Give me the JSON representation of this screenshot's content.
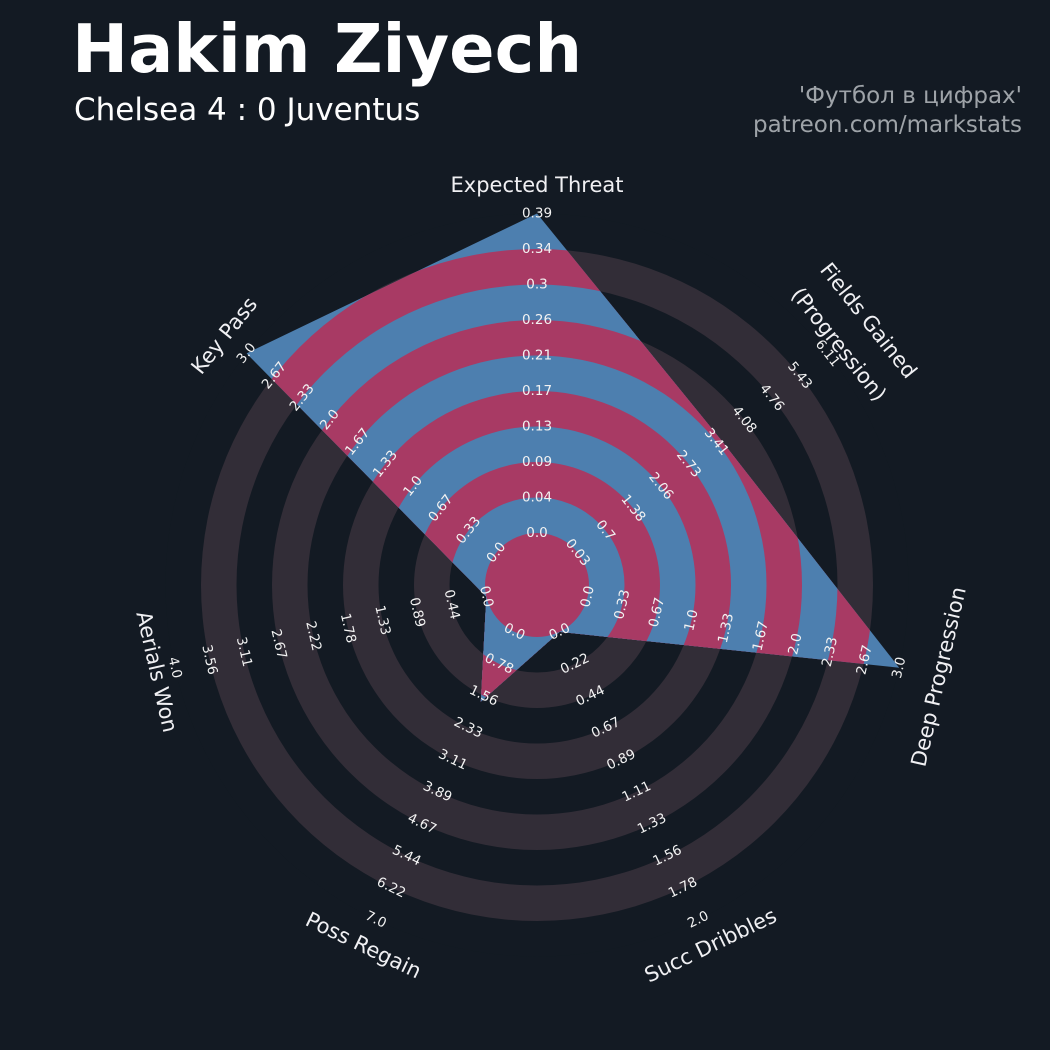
{
  "header": {
    "title": "Hakim Ziyech",
    "subtitle": "Chelsea 4 : 0 Juventus",
    "credit_line1": "'Футбол в цифрах'",
    "credit_line2": "patreon.com/markstats"
  },
  "chart_data": {
    "type": "radar",
    "player": "Hakim Ziyech",
    "match": "Chelsea 4 : 0 Juventus",
    "ring_count": 9,
    "legend_position": "none",
    "grid": "concentric-rings",
    "axes": [
      {
        "label": "Expected Threat",
        "min": 0,
        "max": 0.39,
        "value": 0.39,
        "ticks": [
          "0.0",
          "0.04",
          "0.09",
          "0.13",
          "0.17",
          "0.21",
          "0.26",
          "0.3",
          "0.34",
          "0.39"
        ]
      },
      {
        "label": "Fields Gained (Progression)",
        "label_lines": [
          "Fields Gained",
          "(Progression)"
        ],
        "min": 0.03,
        "max": 6.11,
        "value": 3.5,
        "ticks": [
          "0.03",
          "0.7",
          "1.38",
          "2.06",
          "2.73",
          "3.41",
          "4.08",
          "4.76",
          "5.43",
          "6.11"
        ]
      },
      {
        "label": "Deep Progression",
        "min": 0,
        "max": 3.0,
        "value": 3.0,
        "ticks": [
          "0.0",
          "0.33",
          "0.67",
          "1.0",
          "1.33",
          "1.67",
          "2.0",
          "2.33",
          "2.67",
          "3.0"
        ]
      },
      {
        "label": "Succ Dribbles",
        "min": 0,
        "max": 2.0,
        "value": 0.0,
        "ticks": [
          "0.0",
          "0.22",
          "0.44",
          "0.67",
          "0.89",
          "1.11",
          "1.33",
          "1.56",
          "1.78",
          "2.0"
        ]
      },
      {
        "label": "Poss Regain",
        "min": 0,
        "max": 7.0,
        "value": 1.7,
        "ticks": [
          "0.0",
          "0.78",
          "1.56",
          "2.33",
          "3.11",
          "3.89",
          "4.67",
          "5.44",
          "6.22",
          "7.0"
        ]
      },
      {
        "label": "Aerials Won",
        "min": 0,
        "max": 4.0,
        "value": 0.0,
        "ticks": [
          "0.0",
          "0.44",
          "0.89",
          "1.33",
          "1.78",
          "2.22",
          "2.67",
          "3.11",
          "3.56",
          "4.0"
        ]
      },
      {
        "label": "Key Pass",
        "min": 0,
        "max": 3.0,
        "value": 3.0,
        "ticks": [
          "0.0",
          "0.33",
          "0.67",
          "1.0",
          "1.33",
          "1.67",
          "2.0",
          "2.33",
          "2.67",
          "3.0"
        ]
      }
    ],
    "colors": {
      "radar_fill_blue": "#4D7FAF",
      "radar_ring_crimson": "#A83A64",
      "bg_ring_dark": "#131A23",
      "bg_ring_light": "#322D37",
      "tick_text": "#F2F2F2",
      "label_text": "#F0F0F3"
    }
  }
}
